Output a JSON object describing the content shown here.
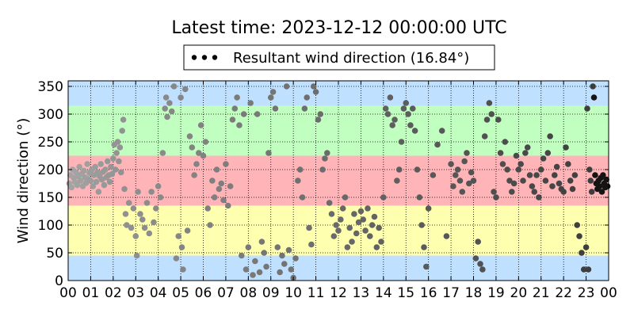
{
  "chart_data": {
    "type": "scatter",
    "title": "Latest time: 2023-12-12 00:00:00 UTC",
    "xlabel": "",
    "ylabel": "Wind direction (°)",
    "xlim": [
      0,
      24
    ],
    "ylim": [
      0,
      360
    ],
    "x_ticks": [
      "00",
      "01",
      "02",
      "03",
      "04",
      "05",
      "06",
      "07",
      "08",
      "09",
      "10",
      "11",
      "12",
      "13",
      "14",
      "15",
      "16",
      "17",
      "18",
      "19",
      "20",
      "21",
      "22",
      "23",
      "00"
    ],
    "y_ticks": [
      0,
      50,
      100,
      150,
      200,
      250,
      300,
      350
    ],
    "grid": true,
    "legend": {
      "entries": [
        "Resultant wind direction (16.84°)"
      ],
      "placement": "top-center, outside plot"
    },
    "background_bands": [
      {
        "from": 0,
        "to": 45,
        "color": "#c0e0ff"
      },
      {
        "from": 45,
        "to": 135,
        "color": "#ffffb0"
      },
      {
        "from": 135,
        "to": 225,
        "color": "#ffb4b8"
      },
      {
        "from": 225,
        "to": 315,
        "color": "#c0ffc0"
      },
      {
        "from": 315,
        "to": 360,
        "color": "#c0e0ff"
      }
    ],
    "series": [
      {
        "name": "Resultant wind direction (16.84°)",
        "note_color": "point shade darkens toward the latest time",
        "points": [
          [
            0.05,
            175
          ],
          [
            0.1,
            190
          ],
          [
            0.15,
            168
          ],
          [
            0.2,
            200
          ],
          [
            0.25,
            185
          ],
          [
            0.3,
            178
          ],
          [
            0.35,
            195
          ],
          [
            0.4,
            172
          ],
          [
            0.45,
            188
          ],
          [
            0.5,
            205
          ],
          [
            0.55,
            180
          ],
          [
            0.6,
            192
          ],
          [
            0.65,
            170
          ],
          [
            0.7,
            198
          ],
          [
            0.75,
            186
          ],
          [
            0.8,
            176
          ],
          [
            0.85,
            210
          ],
          [
            0.9,
            183
          ],
          [
            0.95,
            194
          ],
          [
            1.0,
            180
          ],
          [
            1.05,
            200
          ],
          [
            1.1,
            170
          ],
          [
            1.15,
            190
          ],
          [
            1.2,
            205
          ],
          [
            1.25,
            178
          ],
          [
            1.3,
            195
          ],
          [
            1.35,
            160
          ],
          [
            1.4,
            188
          ],
          [
            1.45,
            210
          ],
          [
            1.5,
            182
          ],
          [
            1.55,
            196
          ],
          [
            1.6,
            172
          ],
          [
            1.65,
            200
          ],
          [
            1.7,
            186
          ],
          [
            1.75,
            215
          ],
          [
            1.8,
            190
          ],
          [
            1.85,
            178
          ],
          [
            1.9,
            205
          ],
          [
            1.95,
            192
          ],
          [
            2.0,
            220
          ],
          [
            2.05,
            245
          ],
          [
            2.1,
            200
          ],
          [
            2.15,
            230
          ],
          [
            2.2,
            250
          ],
          [
            2.25,
            215
          ],
          [
            2.3,
            240
          ],
          [
            2.35,
            195
          ],
          [
            2.4,
            270
          ],
          [
            2.45,
            290
          ],
          [
            2.5,
            165
          ],
          [
            2.55,
            120
          ],
          [
            2.6,
            100
          ],
          [
            2.7,
            140
          ],
          [
            2.8,
            95
          ],
          [
            2.9,
            130
          ],
          [
            3.0,
            80
          ],
          [
            3.05,
            45
          ],
          [
            3.1,
            160
          ],
          [
            3.2,
            120
          ],
          [
            3.3,
            110
          ],
          [
            3.4,
            95
          ],
          [
            3.5,
            140
          ],
          [
            3.6,
            85
          ],
          [
            3.7,
            160
          ],
          [
            3.8,
            105
          ],
          [
            3.9,
            130
          ],
          [
            4.0,
            170
          ],
          [
            4.1,
            150
          ],
          [
            4.2,
            230
          ],
          [
            4.3,
            310
          ],
          [
            4.35,
            330
          ],
          [
            4.4,
            295
          ],
          [
            4.5,
            320
          ],
          [
            4.6,
            305
          ],
          [
            4.7,
            350
          ],
          [
            4.8,
            40
          ],
          [
            4.9,
            80
          ],
          [
            5.0,
            330
          ],
          [
            5.05,
            60
          ],
          [
            5.1,
            20
          ],
          [
            5.2,
            345
          ],
          [
            5.3,
            90
          ],
          [
            5.4,
            260
          ],
          [
            5.5,
            240
          ],
          [
            5.6,
            190
          ],
          [
            5.7,
            210
          ],
          [
            5.8,
            230
          ],
          [
            5.9,
            280
          ],
          [
            6.0,
            225
          ],
          [
            6.1,
            250
          ],
          [
            6.2,
            130
          ],
          [
            6.3,
            100
          ],
          [
            6.4,
            180
          ],
          [
            6.5,
            150
          ],
          [
            6.6,
            200
          ],
          [
            6.7,
            165
          ],
          [
            6.8,
            175
          ],
          [
            6.9,
            145
          ],
          [
            7.0,
            210
          ],
          [
            7.1,
            135
          ],
          [
            7.2,
            170
          ],
          [
            7.3,
            290
          ],
          [
            7.4,
            310
          ],
          [
            7.5,
            330
          ],
          [
            7.6,
            280
          ],
          [
            7.7,
            45
          ],
          [
            7.8,
            300
          ],
          [
            7.9,
            20
          ],
          [
            8.0,
            60
          ],
          [
            8.1,
            320
          ],
          [
            8.2,
            10
          ],
          [
            8.3,
            35
          ],
          [
            8.4,
            300
          ],
          [
            8.5,
            15
          ],
          [
            8.6,
            70
          ],
          [
            8.7,
            50
          ],
          [
            8.8,
            25
          ],
          [
            8.9,
            230
          ],
          [
            9.0,
            330
          ],
          [
            9.1,
            340
          ],
          [
            9.2,
            310
          ],
          [
            9.3,
            60
          ],
          [
            9.4,
            15
          ],
          [
            9.5,
            45
          ],
          [
            9.6,
            30
          ],
          [
            9.7,
            350
          ],
          [
            9.8,
            55
          ],
          [
            9.9,
            20
          ],
          [
            10.0,
            5
          ],
          [
            10.1,
            40
          ],
          [
            10.2,
            180
          ],
          [
            10.3,
            200
          ],
          [
            10.4,
            150
          ],
          [
            10.5,
            310
          ],
          [
            10.6,
            330
          ],
          [
            10.7,
            95
          ],
          [
            10.8,
            65
          ],
          [
            10.9,
            350
          ],
          [
            11.0,
            340
          ],
          [
            11.1,
            290
          ],
          [
            11.2,
            300
          ],
          [
            11.3,
            200
          ],
          [
            11.4,
            220
          ],
          [
            11.5,
            230
          ],
          [
            11.6,
            140
          ],
          [
            11.7,
            120
          ],
          [
            11.8,
            80
          ],
          [
            11.9,
            100
          ],
          [
            12.0,
            90
          ],
          [
            12.1,
            110
          ],
          [
            12.2,
            130
          ],
          [
            12.3,
            150
          ],
          [
            12.4,
            60
          ],
          [
            12.5,
            95
          ],
          [
            12.6,
            70
          ],
          [
            12.7,
            120
          ],
          [
            12.8,
            85
          ],
          [
            12.9,
            105
          ],
          [
            13.0,
            125
          ],
          [
            13.1,
            110
          ],
          [
            13.2,
            90
          ],
          [
            13.3,
            130
          ],
          [
            13.4,
            80
          ],
          [
            13.5,
            100
          ],
          [
            13.6,
            115
          ],
          [
            13.7,
            60
          ],
          [
            13.8,
            95
          ],
          [
            13.9,
            70
          ],
          [
            14.0,
            150
          ],
          [
            14.1,
            310
          ],
          [
            14.2,
            300
          ],
          [
            14.3,
            330
          ],
          [
            14.4,
            280
          ],
          [
            14.5,
            290
          ],
          [
            14.6,
            180
          ],
          [
            14.7,
            200
          ],
          [
            14.8,
            250
          ],
          [
            14.9,
            310
          ],
          [
            15.0,
            320
          ],
          [
            15.1,
            300
          ],
          [
            15.2,
            280
          ],
          [
            15.3,
            310
          ],
          [
            15.4,
            270
          ],
          [
            15.5,
            200
          ],
          [
            15.6,
            150
          ],
          [
            15.7,
            100
          ],
          [
            15.8,
            60
          ],
          [
            15.9,
            25
          ],
          [
            16.0,
            130
          ],
          [
            16.2,
            190
          ],
          [
            16.4,
            245
          ],
          [
            16.6,
            270
          ],
          [
            16.8,
            80
          ],
          [
            17.0,
            210
          ],
          [
            17.1,
            170
          ],
          [
            17.2,
            190
          ],
          [
            17.3,
            200
          ],
          [
            17.4,
            180
          ],
          [
            17.5,
            160
          ],
          [
            17.6,
            215
          ],
          [
            17.7,
            230
          ],
          [
            17.8,
            175
          ],
          [
            17.9,
            195
          ],
          [
            18.0,
            180
          ],
          [
            18.1,
            40
          ],
          [
            18.2,
            70
          ],
          [
            18.3,
            30
          ],
          [
            18.4,
            20
          ],
          [
            18.5,
            260
          ],
          [
            18.6,
            290
          ],
          [
            18.7,
            320
          ],
          [
            18.8,
            300
          ],
          [
            18.9,
            160
          ],
          [
            19.0,
            150
          ],
          [
            19.1,
            290
          ],
          [
            19.2,
            230
          ],
          [
            19.3,
            210
          ],
          [
            19.4,
            250
          ],
          [
            19.5,
            200
          ],
          [
            19.6,
            180
          ],
          [
            19.7,
            160
          ],
          [
            19.8,
            175
          ],
          [
            19.9,
            225
          ],
          [
            20.0,
            200
          ],
          [
            20.1,
            210
          ],
          [
            20.2,
            180
          ],
          [
            20.3,
            230
          ],
          [
            20.4,
            240
          ],
          [
            20.5,
            190
          ],
          [
            20.6,
            170
          ],
          [
            20.7,
            160
          ],
          [
            20.8,
            190
          ],
          [
            20.9,
            150
          ],
          [
            21.0,
            200
          ],
          [
            21.1,
            220
          ],
          [
            21.2,
            180
          ],
          [
            21.3,
            230
          ],
          [
            21.4,
            260
          ],
          [
            21.5,
            170
          ],
          [
            21.6,
            190
          ],
          [
            21.7,
            205
          ],
          [
            21.8,
            175
          ],
          [
            21.9,
            165
          ],
          [
            22.0,
            160
          ],
          [
            22.1,
            240
          ],
          [
            22.2,
            210
          ],
          [
            22.3,
            180
          ],
          [
            22.4,
            165
          ],
          [
            22.5,
            190
          ],
          [
            22.6,
            100
          ],
          [
            22.7,
            80
          ],
          [
            22.8,
            50
          ],
          [
            22.9,
            20
          ],
          [
            23.0,
            60
          ],
          [
            23.05,
            310
          ],
          [
            23.1,
            20
          ],
          [
            23.15,
            200
          ],
          [
            23.2,
            180
          ],
          [
            23.25,
            160
          ],
          [
            23.3,
            350
          ],
          [
            23.35,
            330
          ],
          [
            23.4,
            190
          ],
          [
            23.45,
            175
          ],
          [
            23.5,
            165
          ],
          [
            23.55,
            180
          ],
          [
            23.6,
            170
          ],
          [
            23.65,
            185
          ],
          [
            23.7,
            160
          ],
          [
            23.75,
            190
          ],
          [
            23.8,
            175
          ],
          [
            23.85,
            168
          ],
          [
            23.9,
            182
          ],
          [
            23.95,
            170
          ]
        ]
      }
    ]
  }
}
